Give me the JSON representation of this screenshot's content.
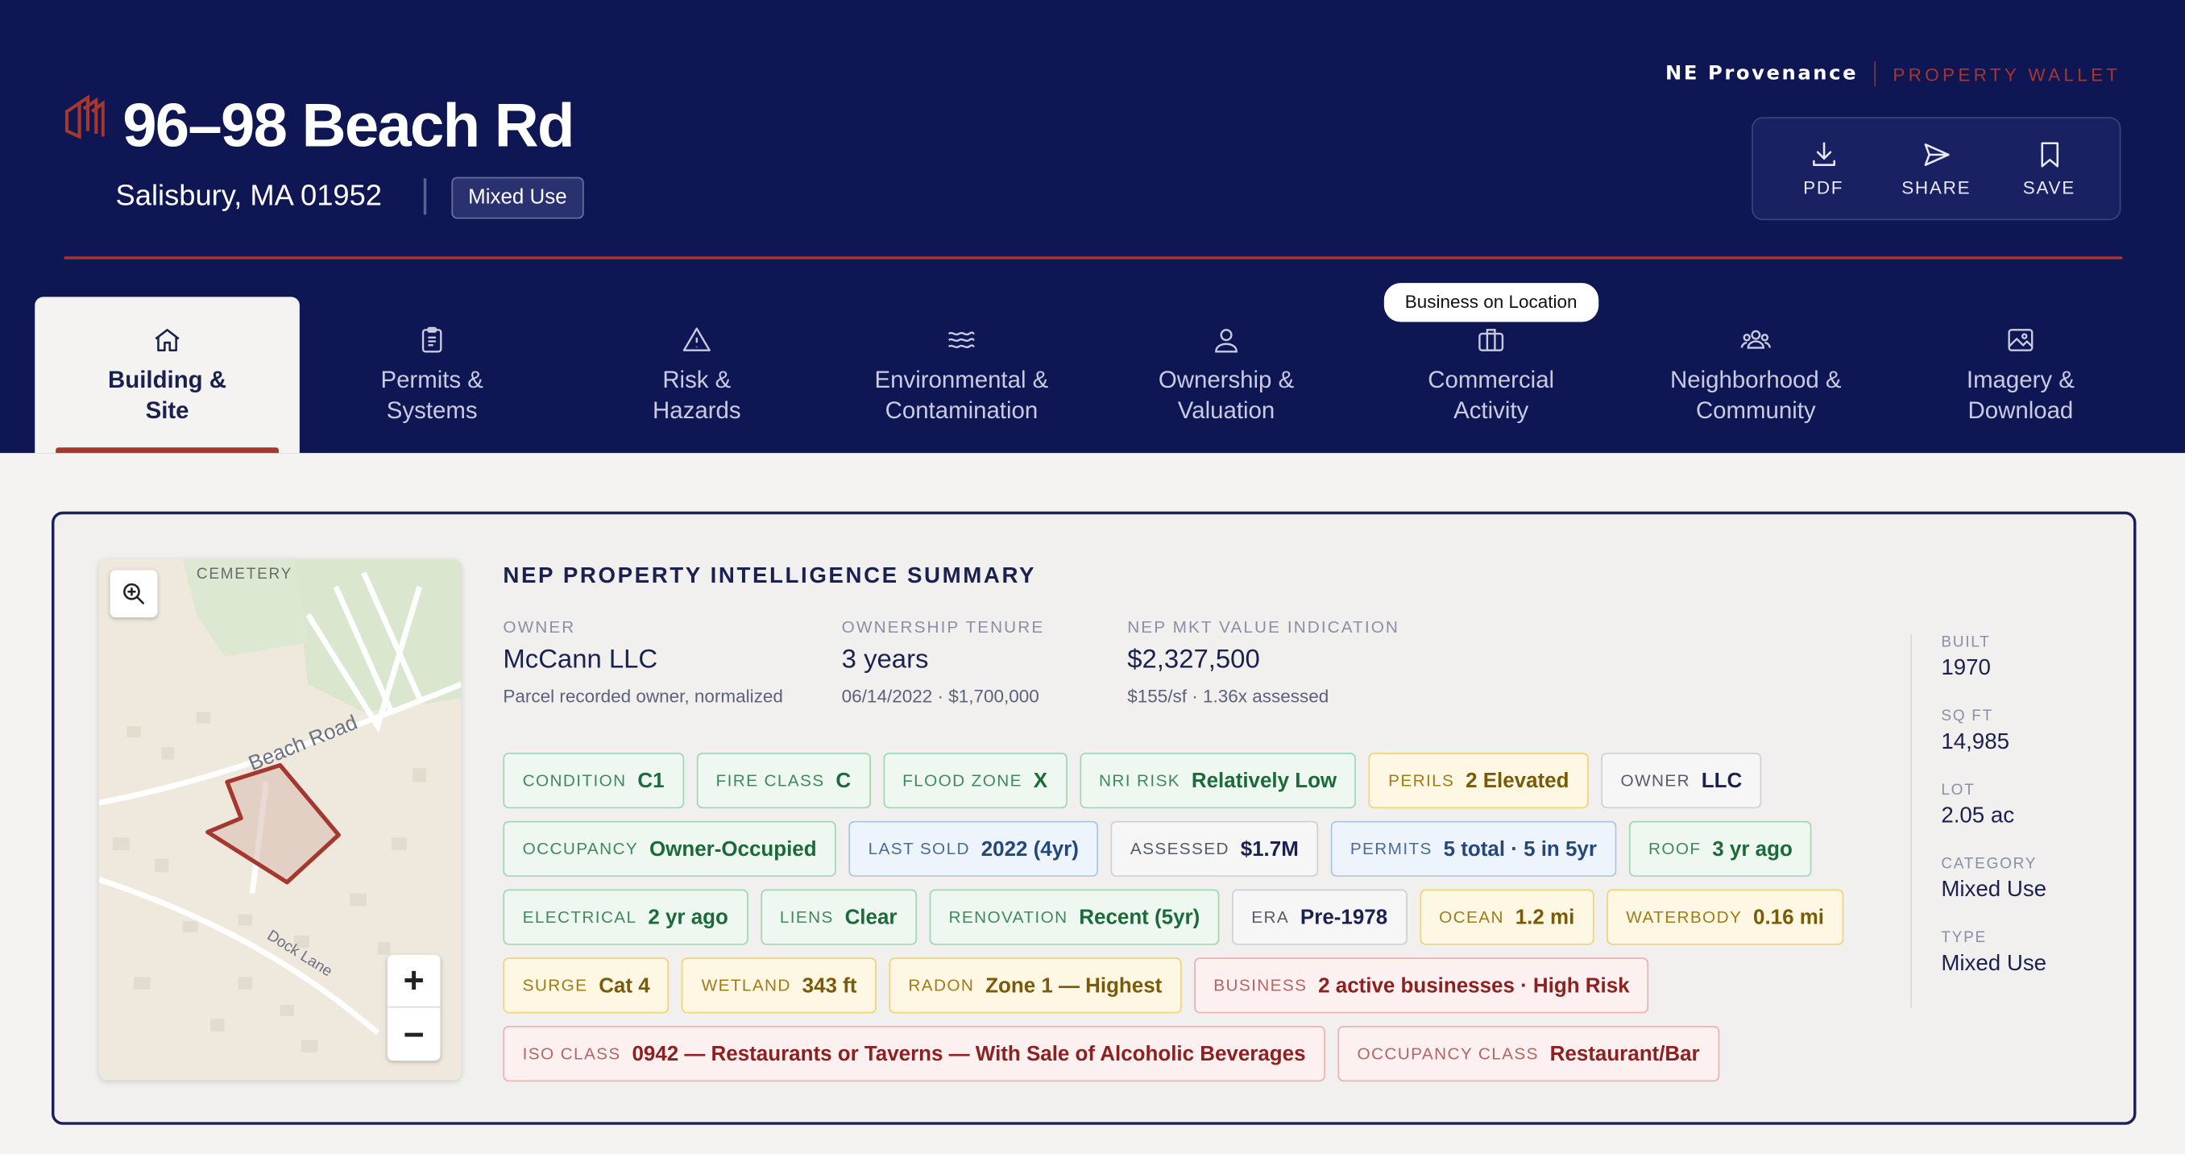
{
  "header": {
    "title": "96–98 Beach Rd",
    "city": "Salisbury, MA 01952",
    "type_badge": "Mixed Use",
    "brand_name": "NE Provenance",
    "brand_product": "PROPERTY WALLET",
    "accent_color": "#a4372e",
    "background_color": "#0f1654",
    "actions": [
      {
        "label": "PDF",
        "icon": "download-icon"
      },
      {
        "label": "SHARE",
        "icon": "send-icon"
      },
      {
        "label": "SAVE",
        "icon": "bookmark-icon"
      }
    ]
  },
  "tabs": [
    {
      "line1": "Building &",
      "line2": "Site",
      "icon": "home-icon",
      "active": true
    },
    {
      "line1": "Permits &",
      "line2": "Systems",
      "icon": "clipboard-icon"
    },
    {
      "line1": "Risk &",
      "line2": "Hazards",
      "icon": "warning-icon"
    },
    {
      "line1": "Environmental &",
      "line2": "Contamination",
      "icon": "waves-icon"
    },
    {
      "line1": "Ownership &",
      "line2": "Valuation",
      "icon": "person-icon"
    },
    {
      "line1": "Commercial",
      "line2": "Activity",
      "icon": "briefcase-icon",
      "pill": "Business on Location"
    },
    {
      "line1": "Neighborhood &",
      "line2": "Community",
      "icon": "people-icon"
    },
    {
      "line1": "Imagery &",
      "line2": "Download",
      "icon": "image-icon"
    }
  ],
  "map": {
    "labels": {
      "cemetery": "CEMETERY",
      "road1": "Beach Road",
      "road2": "Dock Lane"
    },
    "zoom_in": "+",
    "zoom_out": "−"
  },
  "summary": {
    "title": "NEP PROPERTY INTELLIGENCE SUMMARY",
    "owner": {
      "label": "OWNER",
      "value": "McCann LLC",
      "sub": "Parcel recorded owner, normalized"
    },
    "tenure": {
      "label": "OWNERSHIP TENURE",
      "value": "3 years",
      "sub": "06/14/2022 · $1,700,000"
    },
    "value": {
      "label": "NEP MKT VALUE INDICATION",
      "value": "$2,327,500",
      "sub": "$155/sf · 1.36x assessed"
    }
  },
  "chips": [
    [
      {
        "k": "CONDITION",
        "v": "C1",
        "c": "green"
      },
      {
        "k": "FIRE CLASS",
        "v": "C",
        "c": "green"
      },
      {
        "k": "FLOOD ZONE",
        "v": "X",
        "c": "green"
      },
      {
        "k": "NRI RISK",
        "v": "Relatively Low",
        "c": "green"
      },
      {
        "k": "PERILS",
        "v": "2 Elevated",
        "c": "yellow"
      },
      {
        "k": "OWNER",
        "v": "LLC",
        "c": "gray"
      }
    ],
    [
      {
        "k": "OCCUPANCY",
        "v": "Owner-Occupied",
        "c": "green"
      },
      {
        "k": "LAST SOLD",
        "v": "2022 (4yr)",
        "c": "blue"
      },
      {
        "k": "ASSESSED",
        "v": "$1.7M",
        "c": "gray"
      },
      {
        "k": "PERMITS",
        "v": "5 total · 5 in 5yr",
        "c": "blue"
      },
      {
        "k": "ROOF",
        "v": "3 yr ago",
        "c": "green"
      }
    ],
    [
      {
        "k": "ELECTRICAL",
        "v": "2 yr ago",
        "c": "green"
      },
      {
        "k": "LIENS",
        "v": "Clear",
        "c": "green"
      },
      {
        "k": "RENOVATION",
        "v": "Recent (5yr)",
        "c": "green"
      },
      {
        "k": "ERA",
        "v": "Pre-1978",
        "c": "gray"
      },
      {
        "k": "OCEAN",
        "v": "1.2 mi",
        "c": "yellow"
      },
      {
        "k": "WATERBODY",
        "v": "0.16 mi",
        "c": "yellow"
      }
    ],
    [
      {
        "k": "SURGE",
        "v": "Cat 4",
        "c": "yellow"
      },
      {
        "k": "WETLAND",
        "v": "343 ft",
        "c": "yellow"
      },
      {
        "k": "RADON",
        "v": "Zone 1 — Highest",
        "c": "yellow"
      },
      {
        "k": "BUSINESS",
        "v": "2 active businesses · High Risk",
        "c": "red"
      }
    ],
    [
      {
        "k": "ISO CLASS",
        "v": "0942 — Restaurants or Taverns — With Sale of Alcoholic Beverages",
        "c": "red"
      },
      {
        "k": "OCCUPANCY CLASS",
        "v": "Restaurant/Bar",
        "c": "red"
      }
    ]
  ],
  "side": [
    {
      "label": "BUILT",
      "value": "1970"
    },
    {
      "label": "SQ FT",
      "value": "14,985"
    },
    {
      "label": "LOT",
      "value": "2.05 ac"
    },
    {
      "label": "CATEGORY",
      "value": "Mixed Use"
    },
    {
      "label": "TYPE",
      "value": "Mixed Use"
    }
  ]
}
